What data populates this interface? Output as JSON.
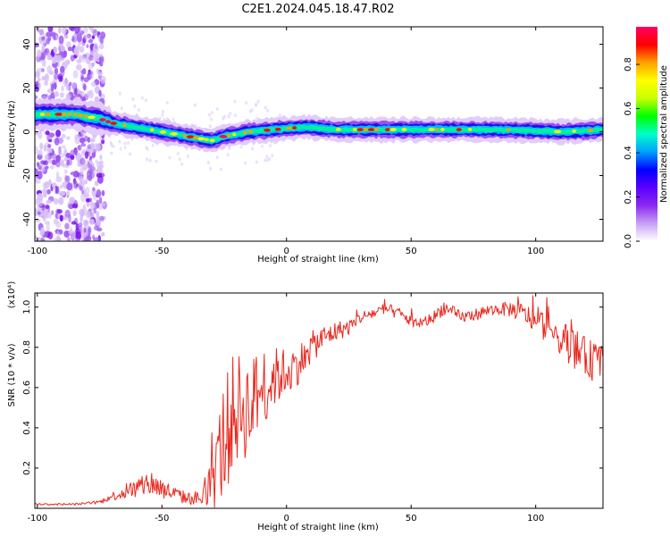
{
  "figure_title": "C2E1.2024.045.18.47.R02",
  "chart_data": [
    {
      "type": "heatmap",
      "xlabel": "Height of straight line (km)",
      "ylabel": "Frequency (Hz)",
      "xlim": [
        -101,
        127
      ],
      "ylim": [
        -50,
        48
      ],
      "xticks": [
        -100,
        -50,
        0,
        50,
        100
      ],
      "yticks": [
        -40,
        -20,
        0,
        20,
        40
      ],
      "ridge": {
        "x": [
          -100,
          -95,
          -90,
          -85,
          -80,
          -75,
          -70,
          -65,
          -60,
          -55,
          -50,
          -45,
          -40,
          -35,
          -30,
          -25,
          -20,
          -15,
          -10,
          -5,
          0,
          5,
          10,
          20,
          40,
          60,
          80,
          100,
          110,
          120,
          127
        ],
        "y": [
          8,
          8,
          8,
          8,
          7,
          6,
          4,
          3,
          2,
          1,
          0,
          -1,
          -2,
          -3,
          -4,
          -2,
          -1,
          0,
          0.5,
          1,
          1.5,
          2,
          2,
          1,
          1,
          1,
          1,
          0.5,
          0,
          0.5,
          1
        ]
      },
      "colorbar": {
        "label": "Normalized spectral amplitude",
        "ticks": [
          0.0,
          0.2,
          0.4,
          0.6,
          0.8
        ],
        "range": [
          0,
          0.97
        ],
        "colormap": [
          "#ffffff",
          "#c8a0f5",
          "#8c28f0",
          "#5a00ff",
          "#0000ff",
          "#00a0ff",
          "#00ffc8",
          "#00ff00",
          "#c8ff00",
          "#ffff00",
          "#ffa000",
          "#ff0000",
          "#ff0060"
        ]
      }
    },
    {
      "type": "line",
      "xlabel": "Height of straight line (km)",
      "ylabel": "SNR (10 * v/v)",
      "multiplier": "(x10⁴)",
      "xlim": [
        -101,
        127
      ],
      "ylim": [
        0,
        1.07
      ],
      "xticks": [
        -100,
        -50,
        0,
        50,
        100
      ],
      "yticks": [
        0.2,
        0.4,
        0.6,
        0.8,
        1.0
      ],
      "ytick_labels": [
        "0.2",
        "0.4",
        "0.6",
        "0.8",
        "1.0"
      ],
      "series": [
        {
          "color": "#e8281e",
          "x": [
            -101,
            -95,
            -90,
            -85,
            -80,
            -75,
            -70,
            -65,
            -60,
            -55,
            -50,
            -45,
            -40,
            -35,
            -30,
            -27,
            -25,
            -22,
            -20,
            -15,
            -10,
            -5,
            0,
            5,
            10,
            15,
            20,
            25,
            30,
            35,
            40,
            45,
            50,
            55,
            60,
            63,
            65,
            70,
            75,
            80,
            85,
            90,
            95,
            100,
            105,
            110,
            115,
            120,
            125,
            127
          ],
          "y": [
            0.02,
            0.02,
            0.02,
            0.02,
            0.025,
            0.03,
            0.06,
            0.08,
            0.1,
            0.13,
            0.1,
            0.07,
            0.05,
            0.05,
            0.1,
            0.25,
            0.35,
            0.45,
            0.5,
            0.5,
            0.6,
            0.65,
            0.68,
            0.72,
            0.8,
            0.85,
            0.88,
            0.9,
            0.95,
            0.97,
            0.99,
            0.97,
            0.93,
            0.92,
            0.96,
            1.0,
            0.98,
            0.95,
            0.96,
            0.98,
            0.99,
            0.99,
            0.97,
            0.93,
            0.9,
            0.85,
            0.8,
            0.75,
            0.72,
            0.73
          ],
          "noise": [
            0.005,
            0.005,
            0.005,
            0.005,
            0.006,
            0.01,
            0.02,
            0.04,
            0.05,
            0.07,
            0.05,
            0.04,
            0.03,
            0.04,
            0.15,
            0.25,
            0.3,
            0.3,
            0.28,
            0.25,
            0.2,
            0.15,
            0.12,
            0.1,
            0.08,
            0.06,
            0.05,
            0.04,
            0.03,
            0.03,
            0.03,
            0.03,
            0.03,
            0.03,
            0.03,
            0.04,
            0.04,
            0.03,
            0.03,
            0.03,
            0.03,
            0.04,
            0.05,
            0.06,
            0.08,
            0.09,
            0.1,
            0.1,
            0.1,
            0.1
          ]
        }
      ]
    }
  ]
}
